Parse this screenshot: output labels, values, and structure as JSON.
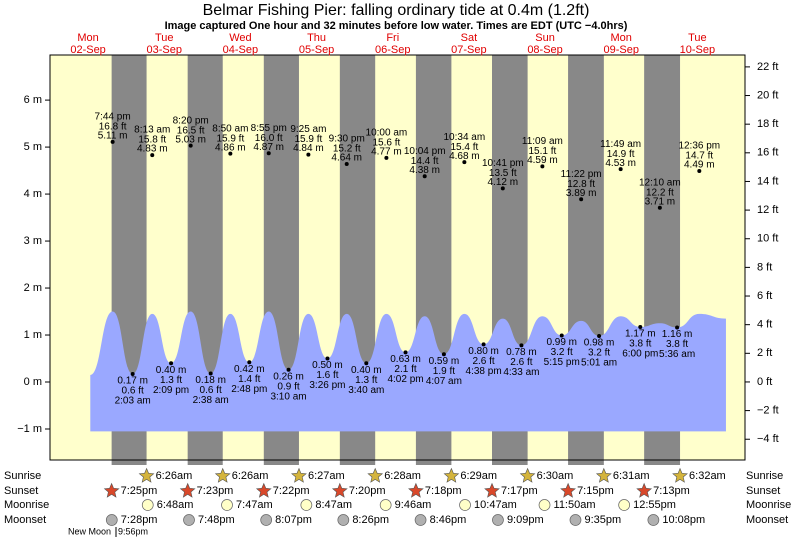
{
  "chart_data": {
    "type": "tide",
    "title": "Belmar Fishing Pier: falling  ordinary tide at 0.4m (1.2ft)",
    "subtitle": "Image captured One hour and 32 minutes before low water. Times are EDT (UTC −4.0hrs)",
    "xlim": [
      0,
      219
    ],
    "ylim": [
      -1.66,
      6.96
    ],
    "y2lim": [
      -5.45,
      22.83
    ],
    "yticks": [
      {
        "value": -1,
        "label": "−1 m"
      },
      {
        "value": 0,
        "label": "0 m"
      },
      {
        "value": 1,
        "label": "1 m"
      },
      {
        "value": 2,
        "label": "2 m"
      },
      {
        "value": 3,
        "label": "3 m"
      },
      {
        "value": 4,
        "label": "4 m"
      },
      {
        "value": 5,
        "label": "5 m"
      },
      {
        "value": 6,
        "label": "6 m"
      }
    ],
    "y2ticks": [
      {
        "value": -4,
        "label": "−4 ft"
      },
      {
        "value": -2,
        "label": "−2 ft"
      },
      {
        "value": 0,
        "label": "0 ft"
      },
      {
        "value": 2,
        "label": "2 ft"
      },
      {
        "value": 4,
        "label": "4 ft"
      },
      {
        "value": 6,
        "label": "6 ft"
      },
      {
        "value": 8,
        "label": "8 ft"
      },
      {
        "value": 10,
        "label": "10 ft"
      },
      {
        "value": 12,
        "label": "12 ft"
      },
      {
        "value": 14,
        "label": "14 ft"
      },
      {
        "value": 16,
        "label": "16 ft"
      },
      {
        "value": 18,
        "label": "18 ft"
      },
      {
        "value": 20,
        "label": "20 ft"
      },
      {
        "value": 22,
        "label": "22 ft"
      }
    ],
    "days": [
      {
        "name": "Mon",
        "date": "02-Sep",
        "x": 12
      },
      {
        "name": "Tue",
        "date": "03-Sep",
        "x": 36
      },
      {
        "name": "Wed",
        "date": "04-Sep",
        "x": 60
      },
      {
        "name": "Thu",
        "date": "05-Sep",
        "x": 84
      },
      {
        "name": "Fri",
        "date": "06-Sep",
        "x": 108
      },
      {
        "name": "Sat",
        "date": "07-Sep",
        "x": 132
      },
      {
        "name": "Sun",
        "date": "08-Sep",
        "x": 156
      },
      {
        "name": "Mon",
        "date": "09-Sep",
        "x": 180
      },
      {
        "name": "Tue",
        "date": "10-Sep",
        "x": 204
      }
    ],
    "curve": {
      "color": "#9aa8ff",
      "base": -1.05,
      "x": [
        12.7,
        19.73,
        26.05,
        32.22,
        38.15,
        44.33,
        50.63,
        56.83,
        62.8,
        68.92,
        75.17,
        81.42,
        87.43,
        93.5,
        99.67,
        106,
        112.03,
        118.07,
        124.12,
        130.57,
        136.63,
        142.68,
        148.55,
        155.15,
        161.25,
        167.37,
        173.02,
        179.82,
        186,
        192.17,
        197.6,
        204.6,
        213
      ],
      "values": [
        0.15,
        1.5,
        0.17,
        1.45,
        0.4,
        1.5,
        0.18,
        1.45,
        0.42,
        1.5,
        0.26,
        1.45,
        0.5,
        1.45,
        0.4,
        1.45,
        0.63,
        1.4,
        0.59,
        1.45,
        0.8,
        1.35,
        0.78,
        1.4,
        0.99,
        1.3,
        0.98,
        1.4,
        1.17,
        1.25,
        1.16,
        1.45,
        1.35
      ]
    },
    "highs": {
      "x": [
        19.73,
        32.22,
        44.33,
        56.83,
        68.92,
        81.42,
        93.5,
        106,
        118.07,
        130.57,
        142.68,
        155.15,
        167.37,
        179.82,
        192.17,
        204.6
      ],
      "values": [
        5.11,
        4.83,
        5.03,
        4.86,
        4.87,
        4.84,
        4.64,
        4.77,
        4.38,
        4.68,
        4.12,
        4.59,
        3.89,
        4.53,
        3.71,
        4.49
      ],
      "value_labels": [
        "5.11 m",
        "4.83 m",
        "5.03 m",
        "4.86 m",
        "4.87 m",
        "4.84 m",
        "4.64 m",
        "4.77 m",
        "4.38 m",
        "4.68 m",
        "4.12 m",
        "4.59 m",
        "3.89 m",
        "4.53 m",
        "3.71 m",
        "4.49 m"
      ],
      "feet_labels": [
        "16.8 ft",
        "15.8 ft",
        "16.5 ft",
        "15.9 ft",
        "16.0 ft",
        "15.9 ft",
        "15.2 ft",
        "15.6 ft",
        "14.4 ft",
        "15.4 ft",
        "13.5 ft",
        "15.1 ft",
        "12.8 ft",
        "14.9 ft",
        "12.2 ft",
        "14.7 ft"
      ],
      "times": [
        "7:44 pm",
        "8:13 am",
        "8:20 pm",
        "8:50 am",
        "8:55 pm",
        "9:25 am",
        "9:30 pm",
        "10:00 am",
        "10:04 pm",
        "10:34 am",
        "10:41 pm",
        "11:09 am",
        "11:22 pm",
        "11:49 am",
        "12:10 am",
        "12:36 pm"
      ]
    },
    "lows": {
      "x": [
        26.05,
        38.15,
        50.63,
        62.8,
        75.17,
        87.43,
        99.67,
        112.03,
        124.12,
        136.63,
        148.55,
        161.25,
        173.02,
        186,
        197.6
      ],
      "values": [
        0.17,
        0.4,
        0.18,
        0.42,
        0.26,
        0.5,
        0.4,
        0.63,
        0.59,
        0.8,
        0.78,
        0.99,
        0.98,
        1.17,
        1.16
      ],
      "value_labels": [
        "0.17 m",
        "0.40 m",
        "0.18 m",
        "0.42 m",
        "0.26 m",
        "0.50 m",
        "0.40 m",
        "0.63 m",
        "0.59 m",
        "0.80 m",
        "0.78 m",
        "0.99 m",
        "0.98 m",
        "1.17 m",
        "1.16 m"
      ],
      "feet_labels": [
        "0.6 ft",
        "1.3 ft",
        "0.6 ft",
        "1.4 ft",
        "0.9 ft",
        "1.6 ft",
        "1.3 ft",
        "2.1 ft",
        "1.9 ft",
        "2.6 ft",
        "2.6 ft",
        "3.2 ft",
        "3.2 ft",
        "3.8 ft",
        "3.8 ft"
      ],
      "times": [
        "2:03 am",
        "2:09 pm",
        "2:38 am",
        "2:48 pm",
        "3:10 am",
        "3:26 pm",
        "3:40 am",
        "4:02 pm",
        "4:07 am",
        "4:38 pm",
        "4:33 am",
        "5:15 pm",
        "5:01 am",
        "6:00 pm",
        "5:36 am"
      ]
    },
    "almanac": [
      {
        "name": "Sunrise",
        "color": "#d4b43c",
        "x": [
          30.43,
          54.43,
          78.45,
          102.47,
          126.48,
          150.5,
          174.52,
          198.53
        ],
        "times": [
          "6:26am",
          "6:26am",
          "6:27am",
          "6:28am",
          "6:29am",
          "6:30am",
          "6:31am",
          "6:32am"
        ]
      },
      {
        "name": "Sunset",
        "color": "#d9482a",
        "x": [
          19.42,
          43.38,
          67.37,
          91.33,
          115.3,
          139.28,
          163.25,
          187.22
        ],
        "times": [
          "7:25pm",
          "7:23pm",
          "7:22pm",
          "7:20pm",
          "7:18pm",
          "7:17pm",
          "7:15pm",
          "7:13pm"
        ]
      },
      {
        "name": "Moonrise",
        "color": "#ffffc8",
        "x": [
          30.8,
          55.78,
          80.78,
          105.77,
          130.78,
          155.83,
          180.92
        ],
        "times": [
          "6:48am",
          "7:47am",
          "8:47am",
          "9:46am",
          "10:47am",
          "11:50am",
          "12:55pm"
        ]
      },
      {
        "name": "Moonset",
        "color": "#b0b0b0",
        "x": [
          19.47,
          43.8,
          68.12,
          92.43,
          116.77,
          141.15,
          165.58,
          190.13
        ],
        "times": [
          "7:28pm",
          "7:48pm",
          "8:07pm",
          "8:26pm",
          "8:46pm",
          "9:09pm",
          "9:35pm",
          "10:08pm"
        ]
      }
    ],
    "moon_phase": {
      "name": "New Moon",
      "time": "9:56pm"
    },
    "day_color": "#ffffcc",
    "night_color": "#888888"
  }
}
